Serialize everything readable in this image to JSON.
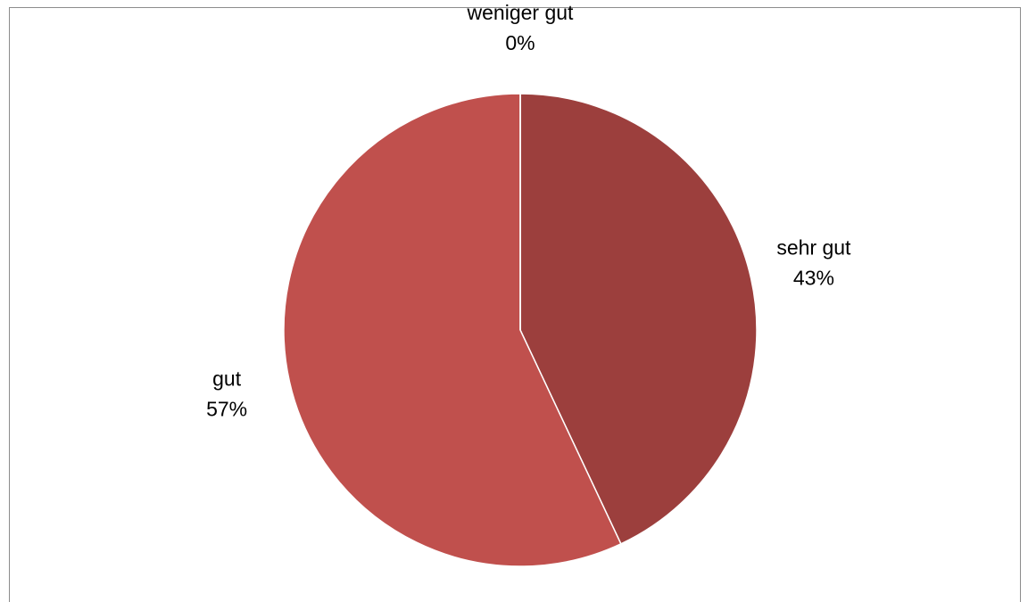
{
  "chart_data": {
    "type": "pie",
    "categories": [
      "sehr gut",
      "gut",
      "weniger gut"
    ],
    "values": [
      43,
      57,
      0
    ],
    "value_labels": [
      "43%",
      "57%",
      "0%"
    ],
    "colors": [
      "#9c3f3d",
      "#c0504d",
      "#d99694"
    ]
  }
}
